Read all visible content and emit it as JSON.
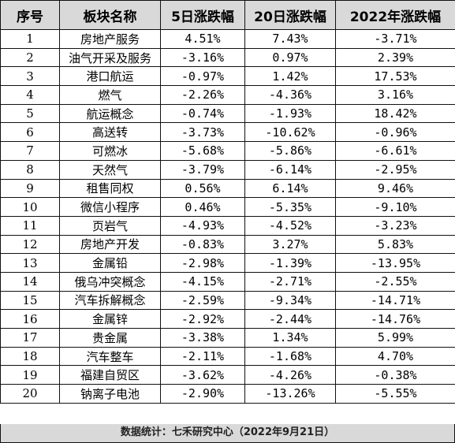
{
  "headers": [
    "序号",
    "板块名称",
    "5日涨跌幅",
    "20日涨跌幅",
    "2022年涨跌幅"
  ],
  "rows": [
    {
      "idx": "1",
      "name": "房地产服务",
      "d5": "4.51%",
      "d20": "7.43%",
      "ytd": "-3.71%"
    },
    {
      "idx": "2",
      "name": "油气开采及服务",
      "d5": "-3.16%",
      "d20": "0.97%",
      "ytd": "2.39%"
    },
    {
      "idx": "3",
      "name": "港口航运",
      "d5": "-0.97%",
      "d20": "1.42%",
      "ytd": "17.53%"
    },
    {
      "idx": "4",
      "name": "燃气",
      "d5": "-2.26%",
      "d20": "-4.36%",
      "ytd": "3.16%"
    },
    {
      "idx": "5",
      "name": "航运概念",
      "d5": "-0.74%",
      "d20": "-1.93%",
      "ytd": "18.42%"
    },
    {
      "idx": "6",
      "name": "高送转",
      "d5": "-3.73%",
      "d20": "-10.62%",
      "ytd": "-0.96%"
    },
    {
      "idx": "7",
      "name": "可燃冰",
      "d5": "-5.68%",
      "d20": "-5.86%",
      "ytd": "-6.61%"
    },
    {
      "idx": "8",
      "name": "天然气",
      "d5": "-3.79%",
      "d20": "-6.14%",
      "ytd": "-2.95%"
    },
    {
      "idx": "9",
      "name": "租售同权",
      "d5": "0.56%",
      "d20": "6.14%",
      "ytd": "9.46%"
    },
    {
      "idx": "10",
      "name": "微信小程序",
      "d5": "0.46%",
      "d20": "-5.35%",
      "ytd": "-9.10%"
    },
    {
      "idx": "11",
      "name": "页岩气",
      "d5": "-4.93%",
      "d20": "-4.52%",
      "ytd": "-3.23%"
    },
    {
      "idx": "12",
      "name": "房地产开发",
      "d5": "-0.83%",
      "d20": "3.27%",
      "ytd": "5.83%"
    },
    {
      "idx": "13",
      "name": "金属铅",
      "d5": "-2.98%",
      "d20": "-1.39%",
      "ytd": "-13.95%"
    },
    {
      "idx": "14",
      "name": "俄乌冲突概念",
      "d5": "-4.15%",
      "d20": "-2.71%",
      "ytd": "-2.55%"
    },
    {
      "idx": "15",
      "name": "汽车拆解概念",
      "d5": "-2.59%",
      "d20": "-9.34%",
      "ytd": "-14.71%"
    },
    {
      "idx": "16",
      "name": "金属锌",
      "d5": "-2.92%",
      "d20": "-2.44%",
      "ytd": "-14.76%"
    },
    {
      "idx": "17",
      "name": "贵金属",
      "d5": "-3.38%",
      "d20": "1.34%",
      "ytd": "5.99%"
    },
    {
      "idx": "18",
      "name": "汽车整车",
      "d5": "-2.11%",
      "d20": "-1.68%",
      "ytd": "4.70%"
    },
    {
      "idx": "19",
      "name": "福建自贸区",
      "d5": "-3.62%",
      "d20": "-4.26%",
      "ytd": "-0.38%"
    },
    {
      "idx": "20",
      "name": "钠离子电池",
      "d5": "-2.90%",
      "d20": "-13.26%",
      "ytd": "-5.55%"
    }
  ],
  "footer": "数据统计：七禾研究中心（2022年9月21日）",
  "colors": {
    "header_bg": "#d9d9d9",
    "border": "#111111"
  }
}
